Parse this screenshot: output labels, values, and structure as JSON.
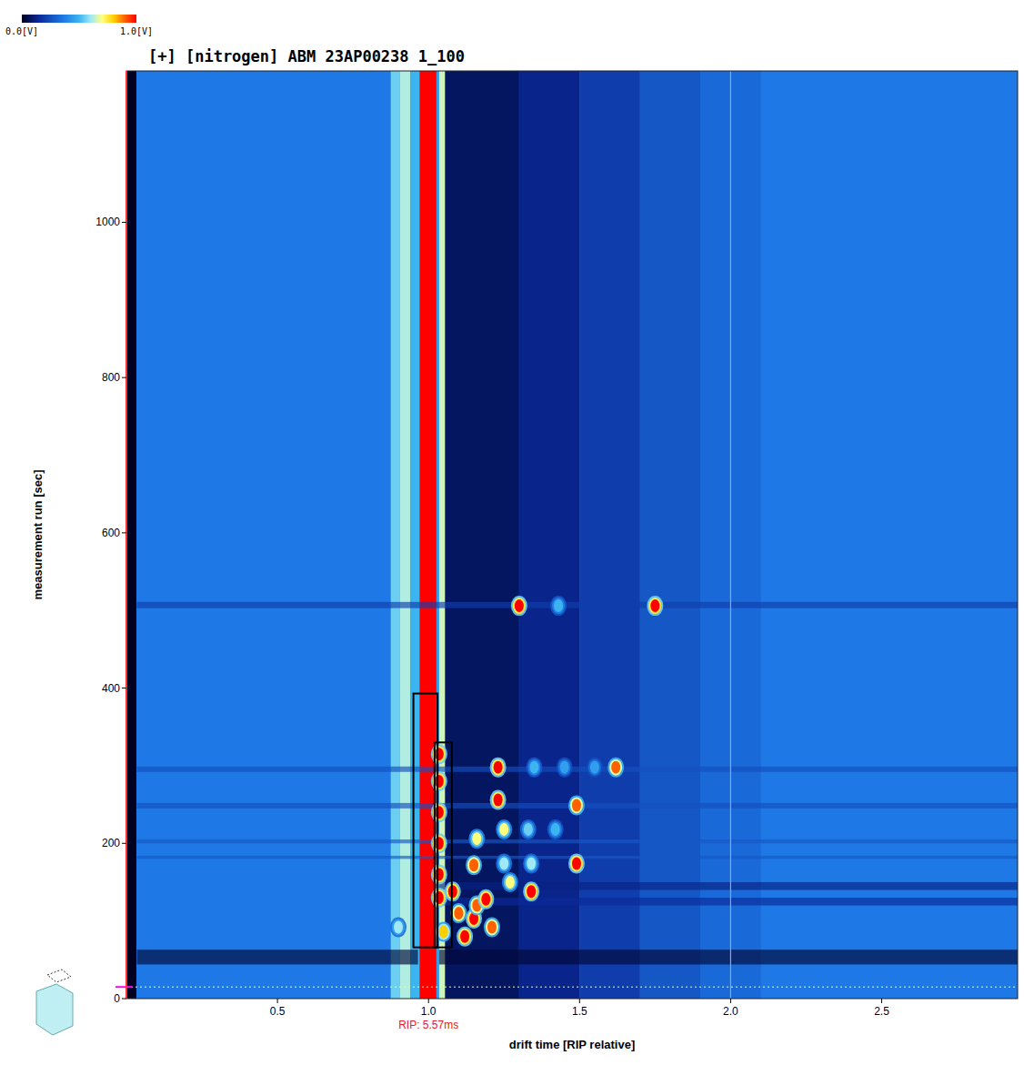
{
  "chart_data": {
    "type": "heatmap",
    "title": "[+] [nitrogen] ABM 23AP00238 1_100",
    "x_label": "drift time [RIP relative]",
    "y_label": "measurement run [sec]",
    "xlim": [
      0,
      2.95
    ],
    "ylim": [
      0,
      1195
    ],
    "xticks": [
      0.5,
      {
        "value": 1,
        "label": "1.0"
      },
      1.5,
      {
        "value": 2,
        "label": "2.0"
      },
      2.5
    ],
    "yticks": [
      0,
      200,
      400,
      600,
      800,
      1000
    ],
    "color_range": [
      0,
      1
    ],
    "color_ticks": [
      {
        "value": 0,
        "label": "0.0[V]"
      },
      {
        "value": 1,
        "label": "1.0[V]"
      }
    ],
    "background": 0.36,
    "bands": [
      {
        "x0": 0.003,
        "x1": 0.033,
        "value": 0
      },
      {
        "x0": 0.875,
        "x1": 0.905,
        "value": 0.55
      },
      {
        "x0": 0.905,
        "x1": 0.94,
        "value": 0.62
      },
      {
        "x0": 0.94,
        "x1": 0.971,
        "value": 0.5
      },
      {
        "x0": 0.971,
        "x1": 1.026,
        "value": 1
      },
      {
        "x0": 1.026,
        "x1": 1.035,
        "value": 0.45
      },
      {
        "x0": 1.035,
        "x1": 1.055,
        "value": 0.65
      },
      {
        "x0": 1.055,
        "x1": 1.3,
        "value": 0.08
      },
      {
        "x0": 1.3,
        "x1": 1.5,
        "value": 0.13
      },
      {
        "x0": 1.5,
        "x1": 1.7,
        "value": 0.2
      },
      {
        "x0": 1.7,
        "x1": 1.9,
        "value": 0.27
      },
      {
        "x0": 1.9,
        "x1": 2.1,
        "value": 0.32
      }
    ],
    "streaks": [
      {
        "x0": 0.035,
        "x1": 0.965,
        "y0": 44,
        "y1": 63,
        "value": 0.03
      },
      {
        "x0": 1.035,
        "x1": 2.95,
        "y0": 44,
        "y1": 63,
        "value": 0.03
      },
      {
        "x0": 1.035,
        "x1": 2.95,
        "y0": 140,
        "y1": 150,
        "value": 0.12
      },
      {
        "x0": 1.035,
        "x1": 2.95,
        "y0": 120,
        "y1": 130,
        "value": 0.15
      },
      {
        "x0": 0.035,
        "x1": 2.95,
        "y0": 503,
        "y1": 511,
        "value": 0.2
      },
      {
        "x0": 0.035,
        "x1": 2.95,
        "y0": 292,
        "y1": 299,
        "value": 0.25
      },
      {
        "x0": 0.035,
        "x1": 2.95,
        "y0": 245,
        "y1": 252,
        "value": 0.25
      },
      {
        "x0": 0.035,
        "x1": 2.95,
        "y0": 200,
        "y1": 205,
        "value": 0.27
      },
      {
        "x0": 0.035,
        "x1": 2.95,
        "y0": 180,
        "y1": 184,
        "value": 0.27
      }
    ],
    "spots": {
      "x": [
        1.3,
        1.75,
        1.43,
        1.23,
        1.62,
        1.23,
        1.49,
        1.49,
        1.34,
        1.15,
        1.12,
        1.16,
        1.21,
        1.08,
        1.25,
        1.33,
        1.42,
        1.25,
        1.34,
        1.16,
        1.35,
        1.45,
        1.55,
        1.15,
        1.05,
        0.9,
        1.035,
        1.035,
        1.035,
        1.035,
        1.035,
        1.035,
        1.1,
        1.19,
        1.27
      ],
      "y": [
        506,
        506,
        506,
        298,
        298,
        256,
        249,
        174,
        138,
        103,
        80,
        120,
        92,
        138,
        218,
        218,
        218,
        174,
        174,
        206,
        298,
        298,
        298,
        172,
        86,
        92,
        130,
        160,
        200,
        240,
        280,
        315,
        110,
        128,
        150
      ],
      "values": [
        1,
        1,
        0.5,
        1,
        0.9,
        1,
        0.9,
        1,
        1,
        1,
        1,
        0.9,
        0.9,
        1,
        0.7,
        0.55,
        0.5,
        0.6,
        0.6,
        0.7,
        0.5,
        0.45,
        0.45,
        0.9,
        0.8,
        0.6,
        1,
        1,
        1,
        1,
        1,
        1,
        0.9,
        1,
        0.7
      ]
    },
    "boxes": [
      {
        "x0": 0.95,
        "x1": 1.03,
        "y0": 66,
        "y1": 393
      },
      {
        "x0": 1.02,
        "x1": 1.077,
        "y0": 66,
        "y1": 330
      }
    ],
    "markers": {
      "x": [
        2.0
      ],
      "y": [
        15
      ]
    },
    "rip": {
      "x": 1.0,
      "label": "RIP: 5.57ms"
    }
  }
}
